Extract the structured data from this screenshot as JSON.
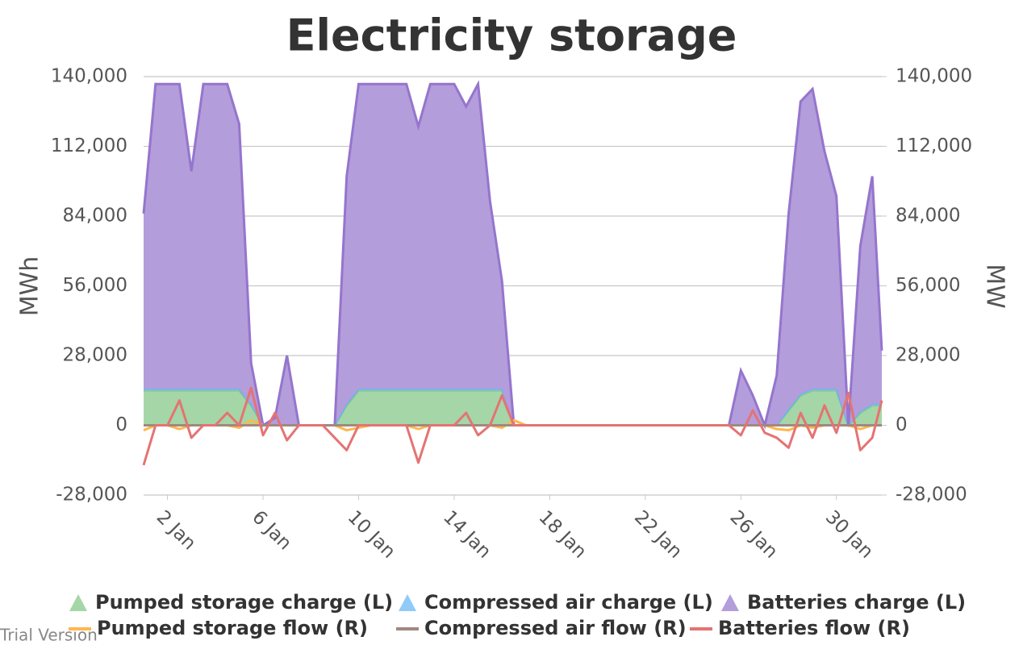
{
  "chart_data": {
    "type": "area",
    "title": "Electricity storage",
    "ylabel": "MWh",
    "y2label": "MW",
    "watermark": "Trial Version",
    "x": [
      1.0,
      1.5,
      2.0,
      2.5,
      3.0,
      3.5,
      4.0,
      4.5,
      5.0,
      5.5,
      6.0,
      6.5,
      7.0,
      7.5,
      8.0,
      8.5,
      9.0,
      9.5,
      10.0,
      10.5,
      11.0,
      11.5,
      12.0,
      12.5,
      13.0,
      13.5,
      14.0,
      14.5,
      15.0,
      15.5,
      16.0,
      16.5,
      17.0,
      17.5,
      18.0,
      18.5,
      19.0,
      19.5,
      20.0,
      20.5,
      21.0,
      21.5,
      22.0,
      22.5,
      23.0,
      23.5,
      24.0,
      24.5,
      25.0,
      25.5,
      26.0,
      26.5,
      27.0,
      27.5,
      28.0,
      28.5,
      29.0,
      29.5,
      30.0,
      30.5,
      31.0,
      31.5,
      31.9
    ],
    "xlim": [
      1,
      31.9
    ],
    "xticks": [
      {
        "value": 2,
        "label": "2 Jan"
      },
      {
        "value": 6,
        "label": "6 Jan"
      },
      {
        "value": 10,
        "label": "10 Jan"
      },
      {
        "value": 14,
        "label": "14 Jan"
      },
      {
        "value": 18,
        "label": "18 Jan"
      },
      {
        "value": 22,
        "label": "22 Jan"
      },
      {
        "value": 26,
        "label": "26 Jan"
      },
      {
        "value": 30,
        "label": "30 Jan"
      }
    ],
    "ylim": [
      -28000,
      140000
    ],
    "yticks": [
      {
        "value": -28000,
        "label": "-28,000"
      },
      0,
      {
        "value": 28000,
        "label": "28,000"
      },
      {
        "value": 56000,
        "label": "56,000"
      },
      {
        "value": 84000,
        "label": "84,000"
      },
      {
        "value": 112000,
        "label": "112,000"
      },
      {
        "value": 140000,
        "label": "140,000"
      }
    ],
    "y2lim": [
      -28000,
      140000
    ],
    "y2ticks": [
      {
        "value": -28000,
        "label": "-28,000"
      },
      0,
      {
        "value": 28000,
        "label": "28,000"
      },
      {
        "value": 56000,
        "label": "56,000"
      },
      {
        "value": 84000,
        "label": "84,000"
      },
      {
        "value": 112000,
        "label": "112,000"
      },
      {
        "value": 140000,
        "label": "140,000"
      }
    ],
    "grid": true,
    "stacked": true,
    "series": [
      {
        "name": "Pumped storage charge (L)",
        "type": "area",
        "axis": "y",
        "color": "#81c784",
        "fill": "#a5d6a7",
        "values": [
          14000,
          14000,
          14000,
          14000,
          14000,
          14000,
          14000,
          14000,
          14000,
          8000,
          0,
          0,
          0,
          0,
          0,
          0,
          0,
          8000,
          14000,
          14000,
          14000,
          14000,
          14000,
          14000,
          14000,
          14000,
          14000,
          14000,
          14000,
          14000,
          14000,
          0,
          0,
          0,
          0,
          0,
          0,
          0,
          0,
          0,
          0,
          0,
          0,
          0,
          0,
          0,
          0,
          0,
          0,
          0,
          0,
          0,
          0,
          0,
          6000,
          12000,
          14000,
          14000,
          14000,
          0,
          5000,
          8000,
          8000
        ]
      },
      {
        "name": "Compressed air charge (L)",
        "type": "area",
        "axis": "y",
        "color": "#64b5f6",
        "fill": "#90caf9",
        "values": [
          600,
          600,
          600,
          600,
          600,
          600,
          600,
          600,
          600,
          600,
          0,
          0,
          0,
          0,
          0,
          0,
          0,
          600,
          600,
          600,
          600,
          600,
          600,
          600,
          600,
          600,
          600,
          600,
          600,
          600,
          600,
          0,
          0,
          0,
          0,
          0,
          0,
          0,
          0,
          0,
          0,
          0,
          0,
          0,
          0,
          0,
          0,
          0,
          0,
          0,
          0,
          0,
          0,
          0,
          600,
          600,
          600,
          600,
          600,
          0,
          600,
          600,
          600
        ]
      },
      {
        "name": "Batteries charge (L)",
        "type": "area",
        "axis": "y",
        "color": "#9575cd",
        "fill": "#b39ddb",
        "values": [
          70400,
          122400,
          122400,
          122400,
          87400,
          122400,
          122400,
          122400,
          106400,
          16400,
          0,
          3000,
          28000,
          0,
          0,
          0,
          0,
          91400,
          122400,
          122400,
          122400,
          122400,
          122400,
          105400,
          122400,
          122400,
          122400,
          113400,
          122400,
          75400,
          43400,
          0,
          0,
          0,
          0,
          0,
          0,
          0,
          0,
          0,
          0,
          0,
          0,
          0,
          0,
          0,
          0,
          0,
          0,
          0,
          22000,
          12000,
          0,
          20000,
          78400,
          117400,
          120400,
          95400,
          77400,
          0,
          66400,
          91400,
          21400
        ]
      },
      {
        "name": "Pumped storage flow (R)",
        "type": "line",
        "axis": "y2",
        "color": "#ffb74d",
        "values": [
          -2000,
          0,
          0,
          -1500,
          0,
          0,
          0,
          0,
          -1000,
          2000,
          0,
          0,
          0,
          0,
          0,
          0,
          0,
          -2000,
          -1000,
          0,
          0,
          0,
          0,
          -1500,
          0,
          0,
          0,
          0,
          0,
          0,
          -1000,
          2000,
          0,
          0,
          0,
          0,
          0,
          0,
          0,
          0,
          0,
          0,
          0,
          0,
          0,
          0,
          0,
          0,
          0,
          0,
          0,
          0,
          0,
          -1500,
          -2000,
          0,
          -1000,
          0,
          0,
          0,
          -1500,
          0,
          0
        ]
      },
      {
        "name": "Compressed air flow (R)",
        "type": "line",
        "axis": "y2",
        "color": "#a1887f",
        "values": [
          0,
          0,
          0,
          0,
          0,
          0,
          0,
          0,
          0,
          0,
          0,
          0,
          0,
          0,
          0,
          0,
          0,
          0,
          0,
          0,
          0,
          0,
          0,
          0,
          0,
          0,
          0,
          0,
          0,
          0,
          0,
          0,
          0,
          0,
          0,
          0,
          0,
          0,
          0,
          0,
          0,
          0,
          0,
          0,
          0,
          0,
          0,
          0,
          0,
          0,
          0,
          0,
          0,
          0,
          0,
          0,
          0,
          0,
          0,
          0,
          0,
          0,
          0
        ]
      },
      {
        "name": "Batteries flow (R)",
        "type": "line",
        "axis": "y2",
        "color": "#e57373",
        "values": [
          -16000,
          0,
          0,
          10000,
          -5000,
          0,
          0,
          5000,
          0,
          15000,
          -4000,
          5000,
          -6000,
          0,
          0,
          0,
          -5000,
          -10000,
          0,
          0,
          0,
          0,
          0,
          -15000,
          0,
          0,
          0,
          5000,
          -4000,
          0,
          12000,
          0,
          0,
          0,
          0,
          0,
          0,
          0,
          0,
          0,
          0,
          0,
          0,
          0,
          0,
          0,
          0,
          0,
          0,
          0,
          -4000,
          6000,
          -3000,
          -5000,
          -9000,
          5000,
          -5000,
          8000,
          -3000,
          13000,
          -10000,
          -5000,
          10000
        ]
      }
    ]
  }
}
